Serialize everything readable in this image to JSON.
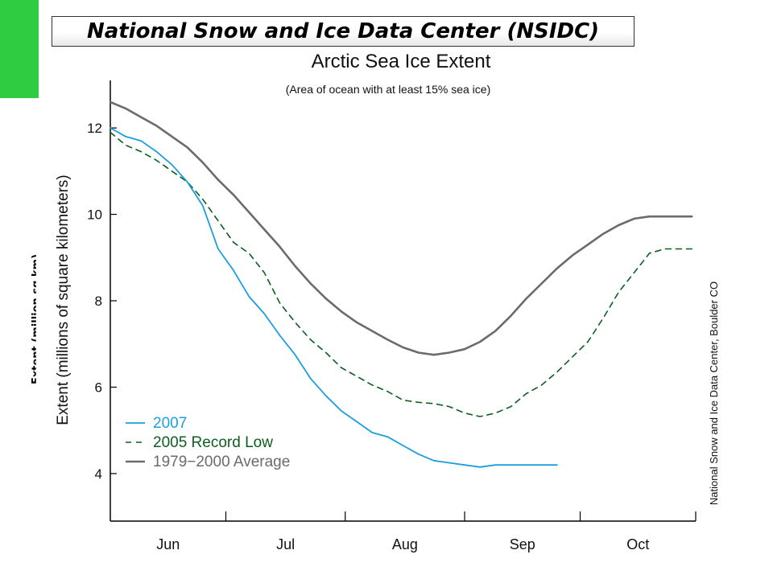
{
  "banner": {
    "text": "National Snow and Ice Data Center (NSIDC)"
  },
  "overlay_label": "Extent (million sq km)",
  "colors": {
    "green_bar": "#2ecc40",
    "series_2007": "#1a9ee0",
    "series_2005": "#0b5e1e",
    "series_avg": "#6b6b6b"
  },
  "chart_data": {
    "type": "line",
    "title": "Arctic Sea Ice Extent",
    "subtitle": "(Area of ocean with at least 15% sea ice)",
    "ylabel": "Extent (millions of square kilometers)",
    "xlabel": "",
    "credit": "National Snow and Ice Data Center, Boulder CO",
    "x_unit": "day of year",
    "xlim": [
      152,
      304
    ],
    "ylim": [
      2.9,
      13.1
    ],
    "yticks": [
      4,
      6,
      8,
      10,
      12
    ],
    "months": [
      {
        "label": "Jun",
        "start": 152,
        "end": 182
      },
      {
        "label": "Jul",
        "start": 182,
        "end": 213
      },
      {
        "label": "Aug",
        "start": 213,
        "end": 244
      },
      {
        "label": "Sep",
        "start": 244,
        "end": 274
      },
      {
        "label": "Oct",
        "start": 274,
        "end": 305
      }
    ],
    "legend_position": "bottom-left",
    "series": [
      {
        "name": "2007",
        "style": "solid",
        "x": [
          152,
          156,
          160,
          164,
          168,
          172,
          176,
          180,
          184,
          188,
          192,
          196,
          200,
          204,
          208,
          212,
          216,
          220,
          224,
          228,
          232,
          236,
          240,
          244,
          248,
          252,
          256,
          260,
          264,
          268
        ],
        "y": [
          12.0,
          11.8,
          11.7,
          11.45,
          11.15,
          10.75,
          10.2,
          9.2,
          8.7,
          8.1,
          7.7,
          7.2,
          6.75,
          6.2,
          5.8,
          5.45,
          5.2,
          4.95,
          4.85,
          4.65,
          4.45,
          4.3,
          4.25,
          4.2,
          4.15,
          4.2,
          4.2,
          4.2,
          4.2,
          4.2
        ]
      },
      {
        "name": "2005 Record Low",
        "style": "dashed",
        "x": [
          152,
          156,
          160,
          164,
          168,
          172,
          176,
          180,
          184,
          188,
          192,
          196,
          200,
          204,
          208,
          212,
          216,
          220,
          224,
          228,
          232,
          236,
          240,
          244,
          248,
          252,
          256,
          260,
          264,
          268,
          272,
          276,
          280,
          284,
          288,
          292,
          296,
          300,
          303
        ],
        "y": [
          11.9,
          11.6,
          11.45,
          11.25,
          11.0,
          10.75,
          10.35,
          9.85,
          9.35,
          9.1,
          8.65,
          7.95,
          7.5,
          7.1,
          6.8,
          6.45,
          6.25,
          6.05,
          5.9,
          5.7,
          5.65,
          5.62,
          5.55,
          5.4,
          5.32,
          5.4,
          5.55,
          5.85,
          6.05,
          6.35,
          6.7,
          7.05,
          7.6,
          8.2,
          8.65,
          9.1,
          9.2,
          9.2,
          9.2
        ]
      },
      {
        "name": "1979−2000 Average",
        "style": "solid",
        "x": [
          152,
          156,
          160,
          164,
          168,
          172,
          176,
          180,
          184,
          188,
          192,
          196,
          200,
          204,
          208,
          212,
          216,
          220,
          224,
          228,
          232,
          236,
          240,
          244,
          248,
          252,
          256,
          260,
          264,
          268,
          272,
          276,
          280,
          284,
          288,
          292,
          296,
          300,
          303
        ],
        "y": [
          12.6,
          12.45,
          12.25,
          12.05,
          11.8,
          11.55,
          11.2,
          10.8,
          10.45,
          10.05,
          9.65,
          9.25,
          8.8,
          8.4,
          8.05,
          7.75,
          7.5,
          7.3,
          7.1,
          6.92,
          6.8,
          6.75,
          6.8,
          6.88,
          7.05,
          7.3,
          7.65,
          8.05,
          8.4,
          8.75,
          9.05,
          9.3,
          9.55,
          9.75,
          9.9,
          9.95,
          9.95,
          9.95,
          9.95
        ]
      }
    ]
  }
}
